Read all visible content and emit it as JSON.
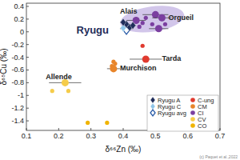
{
  "chart_data": {
    "type": "scatter",
    "x_label": "δ⁶⁶Zn (‰)",
    "y_label": "δ⁶⁵Cu (‰)",
    "xlim": [
      0.1,
      0.7
    ],
    "ylim": [
      -1.55,
      0.45
    ],
    "xticks": [
      0.1,
      0.2,
      0.3,
      0.4,
      0.5,
      0.6,
      0.7
    ],
    "yticks": [
      -1.4,
      -1.2,
      -1,
      -0.8,
      -0.6,
      -0.4,
      -0.2,
      0,
      0.2,
      0.4
    ],
    "legend": "lower right",
    "grid": false,
    "source": "(c) Paquet et al.,2022",
    "series": [
      {
        "name": "Ryugu A",
        "color": "#1f2d5a",
        "marker": "diamond",
        "x": [
          0.41,
          0.42,
          0.4,
          0.43
        ],
        "values": [
          0.12,
          0.07,
          0.15,
          0.1
        ],
        "x_errors": [
          0.01,
          0.01,
          0.01,
          0.01
        ],
        "y_errors": [
          0.05,
          0.05,
          0.05,
          0.05
        ]
      },
      {
        "name": "Ryugu C",
        "color": "#8ec5e8",
        "marker": "diamond",
        "x": [
          0.415,
          0.4
        ],
        "values": [
          0.09,
          0.06
        ],
        "x_errors": [
          null,
          null
        ],
        "y_errors": [
          null,
          null
        ]
      },
      {
        "name": "Ryugu avg",
        "color": "#2a5ca8",
        "marker": "open-diamond",
        "x": [
          0.41
        ],
        "values": [
          0.05
        ],
        "x_errors": [
          0.02
        ],
        "y_errors": [
          0.06
        ]
      },
      {
        "name": "C-ung",
        "color": "#e03a2f",
        "marker": "circle",
        "x": [
          0.46,
          0.47
        ],
        "values": [
          -0.22,
          -0.43
        ],
        "x_errors": [
          null,
          0.05
        ],
        "y_errors": [
          null,
          0.05
        ]
      },
      {
        "name": "CM",
        "color": "#e8852a",
        "marker": "circle",
        "x": [
          0.37,
          0.375,
          0.365,
          0.37
        ],
        "values": [
          -0.47,
          -0.5,
          -0.54,
          -0.58
        ],
        "x_errors": [
          null,
          null,
          null,
          0.02
        ],
        "y_errors": [
          null,
          null,
          null,
          0.05
        ]
      },
      {
        "name": "CI",
        "color": "#7b3fa0",
        "marker": "circle",
        "x": [
          0.44,
          0.47,
          0.5,
          0.52,
          0.49,
          0.51,
          0.53,
          0.46,
          0.45
        ],
        "values": [
          0.18,
          0.22,
          0.27,
          0.22,
          0.12,
          0.05,
          0.12,
          0.14,
          0.08
        ],
        "x_errors": [
          0.03,
          null,
          0.04,
          0.03,
          null,
          0.03,
          null,
          null,
          null
        ],
        "y_errors": [
          0.05,
          null,
          0.05,
          0.05,
          null,
          0.05,
          null,
          null,
          null
        ],
        "field": {
          "x": 0.49,
          "y": 0.2,
          "rx": 0.1,
          "ry": 0.2
        }
      },
      {
        "name": "CV",
        "color": "#f5cc4a",
        "marker": "circle",
        "x": [
          0.22,
          0.18,
          0.23
        ],
        "values": [
          -0.8,
          -0.93,
          -0.93
        ],
        "x_errors": [
          0.05,
          null,
          null
        ],
        "y_errors": [
          0.05,
          null,
          null
        ]
      },
      {
        "name": "CO",
        "color": "#f0b400",
        "marker": "circle",
        "x": [
          0.29,
          0.35
        ],
        "values": [
          -1.43,
          -1.43
        ],
        "x_errors": [
          null,
          null
        ],
        "y_errors": [
          null,
          null
        ]
      }
    ],
    "annotations": [
      {
        "text": "Ryugu",
        "x": 0.255,
        "y": -0.03
      },
      {
        "text": "Alais",
        "x": 0.39,
        "y": 0.29
      },
      {
        "text": "Orgueil",
        "x": 0.54,
        "y": 0.19
      },
      {
        "text": "Tarda",
        "x": 0.52,
        "y": -0.45
      },
      {
        "text": "Murchison",
        "x": 0.39,
        "y": -0.61
      },
      {
        "text": "Allende",
        "x": 0.16,
        "y": -0.74
      }
    ]
  }
}
